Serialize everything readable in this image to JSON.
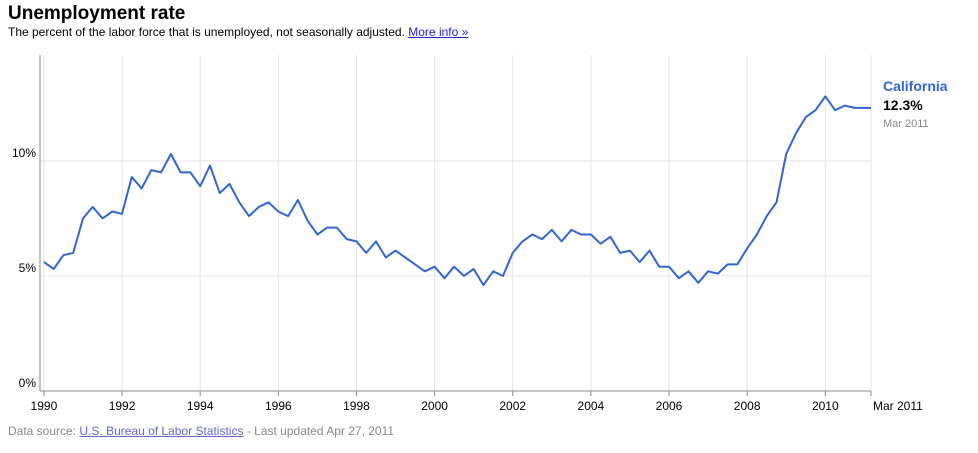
{
  "header": {
    "title": "Unemployment rate",
    "subtitle": "The percent of the labor force that is unemployed, not seasonally adjusted.",
    "link": "More info »"
  },
  "chart_data": {
    "type": "line",
    "x": [
      1990,
      1990.25,
      1990.5,
      1990.75,
      1991,
      1991.25,
      1991.5,
      1991.75,
      1992,
      1992.25,
      1992.5,
      1992.75,
      1993,
      1993.25,
      1993.5,
      1993.75,
      1994,
      1994.25,
      1994.5,
      1994.75,
      1995,
      1995.25,
      1995.5,
      1995.75,
      1996,
      1996.25,
      1996.5,
      1996.75,
      1997,
      1997.25,
      1997.5,
      1997.75,
      1998,
      1998.25,
      1998.5,
      1998.75,
      1999,
      1999.25,
      1999.5,
      1999.75,
      2000,
      2000.25,
      2000.5,
      2000.75,
      2001,
      2001.25,
      2001.5,
      2001.75,
      2002,
      2002.25,
      2002.5,
      2002.75,
      2003,
      2003.25,
      2003.5,
      2003.75,
      2004,
      2004.25,
      2004.5,
      2004.75,
      2005,
      2005.25,
      2005.5,
      2005.75,
      2006,
      2006.25,
      2006.5,
      2006.75,
      2007,
      2007.25,
      2007.5,
      2007.75,
      2008,
      2008.25,
      2008.5,
      2008.75,
      2009,
      2009.25,
      2009.5,
      2009.75,
      2010,
      2010.25,
      2010.5,
      2010.75,
      2011.17
    ],
    "series": [
      {
        "name": "California",
        "color": "#3366cc",
        "values": [
          5.6,
          5.3,
          5.9,
          6.0,
          7.5,
          8.0,
          7.5,
          7.8,
          7.7,
          9.3,
          8.8,
          9.6,
          9.5,
          10.3,
          9.5,
          9.5,
          8.9,
          9.8,
          8.6,
          9.0,
          8.2,
          7.6,
          8.0,
          8.2,
          7.8,
          7.6,
          8.3,
          7.4,
          6.8,
          7.1,
          7.1,
          6.6,
          6.5,
          6.0,
          6.5,
          5.8,
          6.1,
          5.8,
          5.5,
          5.2,
          5.4,
          4.9,
          5.4,
          5.0,
          5.3,
          4.6,
          5.2,
          5.0,
          6.0,
          6.5,
          6.8,
          6.6,
          7.0,
          6.5,
          7.0,
          6.8,
          6.8,
          6.4,
          6.7,
          6.0,
          6.1,
          5.6,
          6.1,
          5.4,
          5.4,
          4.9,
          5.2,
          4.7,
          5.2,
          5.1,
          5.5,
          5.5,
          6.2,
          6.8,
          7.6,
          8.2,
          10.3,
          11.2,
          11.9,
          12.2,
          12.8,
          12.2,
          12.4,
          12.3,
          12.3
        ],
        "value_labels": [
          null,
          null,
          null,
          null,
          null,
          null,
          null,
          null,
          null,
          null,
          null,
          null,
          null,
          null,
          null,
          null,
          null,
          null,
          null,
          null,
          null,
          null,
          null,
          null,
          null,
          null,
          null,
          null,
          null,
          null,
          null,
          null,
          null,
          null,
          null,
          null,
          null,
          null,
          null,
          null,
          null,
          null,
          null,
          null,
          null,
          null,
          null,
          null,
          null,
          null,
          null,
          null,
          null,
          null,
          null,
          null,
          null,
          null,
          null,
          null,
          null,
          null,
          null,
          null,
          null,
          null,
          null,
          null,
          null,
          null,
          null,
          null,
          null,
          null,
          null,
          null,
          null,
          null,
          null,
          null,
          null,
          null,
          null,
          null,
          "12.3%"
        ],
        "latest_date": "Mar 2011"
      }
    ],
    "xlim": [
      1989.9,
      2011.17
    ],
    "xticks": [
      1990,
      1992,
      1994,
      1996,
      1998,
      2000,
      2002,
      2004,
      2006,
      2008,
      2010,
      {
        "value": 2011.17,
        "label": "Mar 2011"
      }
    ],
    "ylim": [
      0,
      14.6
    ],
    "yticks": [
      {
        "value": 0,
        "label": "0%"
      },
      {
        "value": 5,
        "label": "5%"
      },
      {
        "value": 10,
        "label": "10%"
      }
    ],
    "grid": true
  },
  "footer": {
    "source_prefix": "Data source:",
    "source_link": "U.S. Bureau of Labor Statistics",
    "updated": "- Last updated Apr 27, 2011"
  }
}
